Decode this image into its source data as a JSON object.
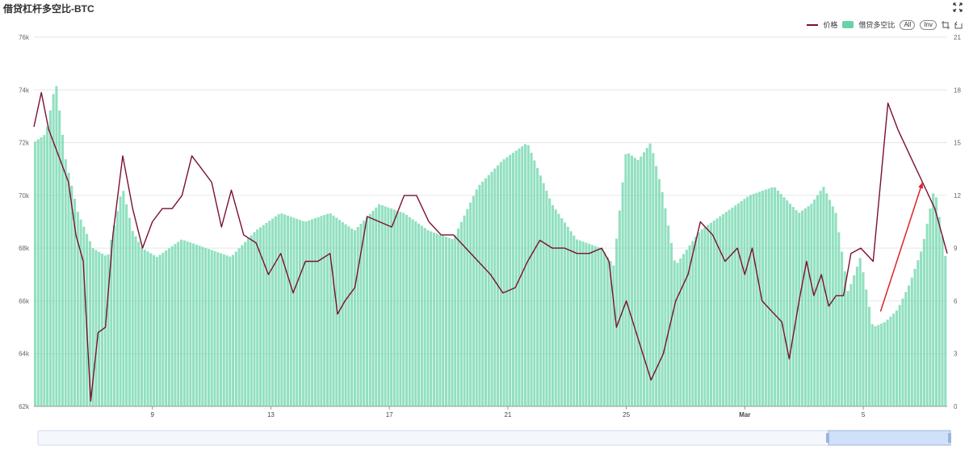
{
  "title": "借贷杠杆多空比-BTC",
  "legend": {
    "price_label": "价格",
    "ratio_label": "借贷多空比",
    "all_label": "All",
    "inv_label": "Inv"
  },
  "colors": {
    "price": "#7a0f34",
    "ratio": "#66d4a8",
    "grid": "#e6e6e6",
    "axis_text": "#666666",
    "arrow": "#e0202a"
  },
  "chart_data": {
    "type": "line",
    "series": [
      {
        "name": "价格",
        "axis": "left",
        "kind": "line",
        "x": [
          0,
          0.3,
          0.6,
          1.0,
          1.4,
          1.7,
          2.0,
          2.3,
          2.6,
          2.9,
          3.2,
          3.6,
          4.0,
          4.4,
          4.8,
          5.2,
          5.6,
          6.0,
          6.4,
          6.8,
          7.2,
          7.6,
          8.0,
          8.5,
          9.0,
          9.5,
          10.0,
          10.5,
          11.0,
          11.5,
          12.0,
          12.3,
          12.6,
          13.0,
          13.5,
          14.0,
          14.5,
          15.0,
          15.5,
          16.0,
          16.5,
          17.0,
          17.5,
          18.0,
          18.5,
          19.0,
          19.5,
          20.0,
          20.5,
          21.0,
          21.5,
          22.0,
          22.5,
          23.0,
          23.3,
          23.6,
          24.0,
          24.5,
          25.0,
          25.5,
          26.0,
          26.5,
          27.0,
          27.5,
          28.0,
          28.5,
          28.8,
          29.1,
          29.5,
          30.0,
          30.3,
          30.6,
          31.0,
          31.3,
          31.6,
          31.9,
          32.2,
          32.5,
          32.8,
          33.1,
          33.5,
          34.0,
          34.3,
          34.6,
          35.0,
          35.5,
          36.0,
          36.5,
          37.0
        ],
        "y": [
          72.6,
          73.9,
          72.5,
          71.5,
          70.5,
          68.5,
          67.5,
          62.2,
          64.8,
          65.0,
          68.5,
          71.5,
          69.5,
          68.0,
          69.0,
          69.5,
          69.5,
          70.0,
          71.5,
          71.0,
          70.5,
          68.8,
          70.2,
          68.5,
          68.2,
          67.0,
          67.8,
          66.3,
          67.5,
          67.5,
          67.8,
          65.5,
          66.0,
          66.5,
          69.2,
          69.0,
          68.8,
          70.0,
          70.0,
          69.0,
          68.5,
          68.5,
          68.0,
          67.5,
          67.0,
          66.3,
          66.5,
          67.5,
          68.3,
          68.0,
          68.0,
          67.8,
          67.8,
          68.0,
          67.5,
          65.0,
          66.0,
          64.5,
          63.0,
          64.0,
          66.0,
          67.0,
          69.0,
          68.5,
          67.5,
          68.0,
          67.0,
          68.0,
          66.0,
          65.5,
          65.2,
          63.8,
          66.0,
          67.5,
          66.2,
          67.0,
          65.8,
          66.2,
          66.2,
          67.8,
          68.0,
          67.5,
          70.5,
          73.5,
          72.5,
          71.5,
          70.5,
          69.5,
          67.8
        ]
      },
      {
        "name": "借贷多空比",
        "axis": "right",
        "kind": "bar",
        "x": [
          0,
          0.5,
          0.9,
          1.3,
          1.8,
          2.4,
          3.0,
          3.6,
          4.0,
          4.4,
          5.0,
          6.0,
          7.0,
          8.0,
          9.0,
          10.0,
          11.0,
          12.0,
          13.0,
          14.0,
          15.0,
          16.0,
          17.0,
          18.0,
          19.0,
          20.0,
          21.0,
          22.0,
          23.0,
          23.5,
          24.0,
          24.5,
          25.0,
          25.5,
          26.0,
          27.0,
          28.0,
          29.0,
          30.0,
          31.0,
          31.5,
          32.0,
          32.5,
          33.0,
          33.5,
          34.0,
          34.5,
          35.0,
          35.5,
          36.0,
          36.5,
          37.0
        ],
        "y": [
          15.0,
          15.5,
          18.5,
          14.0,
          11.0,
          9.0,
          8.5,
          12.5,
          10.0,
          9.0,
          8.5,
          9.5,
          9.0,
          8.5,
          10.0,
          11.0,
          10.5,
          11.0,
          10.0,
          11.5,
          11.0,
          10.0,
          9.5,
          12.5,
          14.0,
          15.0,
          11.5,
          9.5,
          9.0,
          8.0,
          14.5,
          14.0,
          15.0,
          12.0,
          8.0,
          10.0,
          11.0,
          12.0,
          12.5,
          11.0,
          11.5,
          12.5,
          11.0,
          6.5,
          8.5,
          4.5,
          4.8,
          5.5,
          7.0,
          9.0,
          12.5,
          8.0
        ]
      }
    ],
    "x_ticks": [
      {
        "x": 4.8,
        "label": "9"
      },
      {
        "x": 9.6,
        "label": "13"
      },
      {
        "x": 14.4,
        "label": "17"
      },
      {
        "x": 19.2,
        "label": "21"
      },
      {
        "x": 24.0,
        "label": "25"
      },
      {
        "x": 28.8,
        "label": "Mar"
      },
      {
        "x": 33.6,
        "label": "5"
      }
    ],
    "xlim": [
      0,
      37
    ],
    "y_left_ticks": [
      "62k",
      "64k",
      "66k",
      "68k",
      "70k",
      "72k",
      "74k",
      "76k"
    ],
    "y_left_range": [
      62,
      76
    ],
    "y_right_ticks": [
      "0",
      "3",
      "6",
      "9",
      "12",
      "15",
      "18",
      "21"
    ],
    "y_right_range": [
      0,
      21
    ],
    "grid": true,
    "legend_position": "top-right",
    "annotation": {
      "type": "arrow",
      "from": [
        34.3,
        65.6
      ],
      "to": [
        36.0,
        70.5
      ]
    }
  }
}
